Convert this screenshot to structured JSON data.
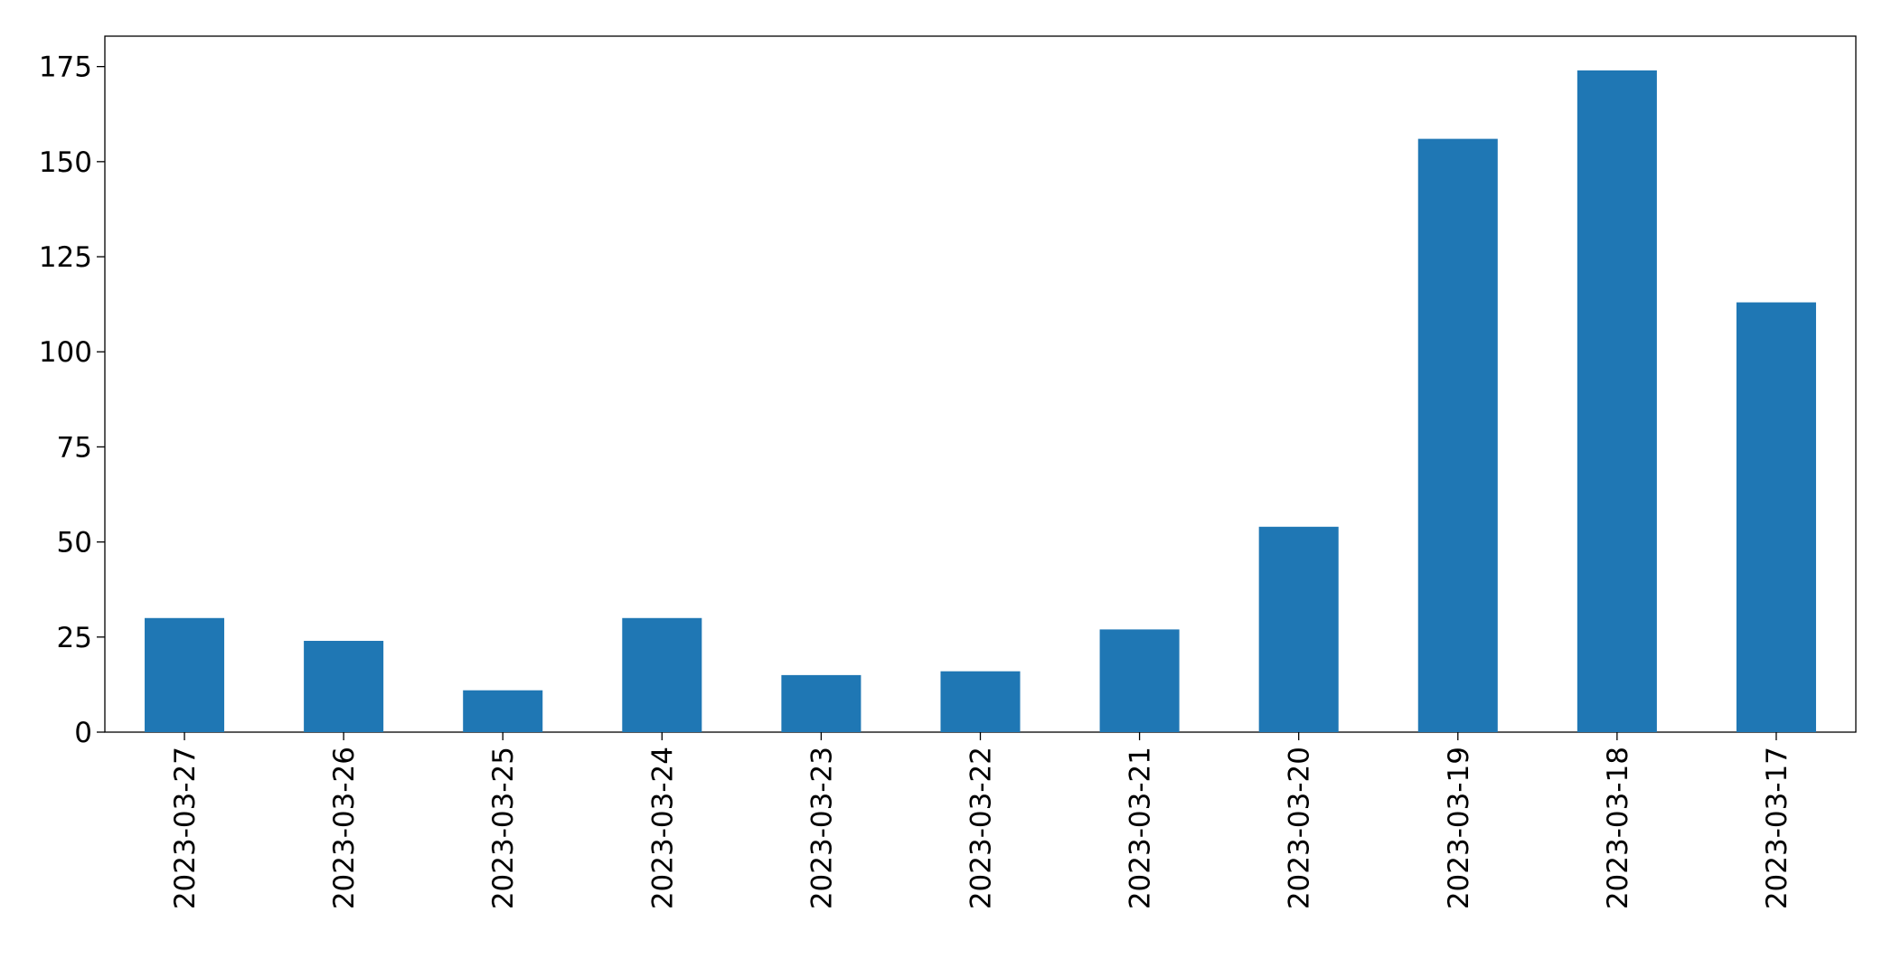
{
  "chart_data": {
    "type": "bar",
    "categories": [
      "2023-03-27",
      "2023-03-26",
      "2023-03-25",
      "2023-03-24",
      "2023-03-23",
      "2023-03-22",
      "2023-03-21",
      "2023-03-20",
      "2023-03-19",
      "2023-03-18",
      "2023-03-17"
    ],
    "values": [
      30,
      24,
      11,
      30,
      15,
      16,
      27,
      54,
      156,
      174,
      113
    ],
    "color": "#1f77b4",
    "ylim": [
      0,
      183
    ],
    "yticks": [
      0,
      25,
      50,
      75,
      100,
      125,
      150,
      175
    ],
    "grid": false
  }
}
